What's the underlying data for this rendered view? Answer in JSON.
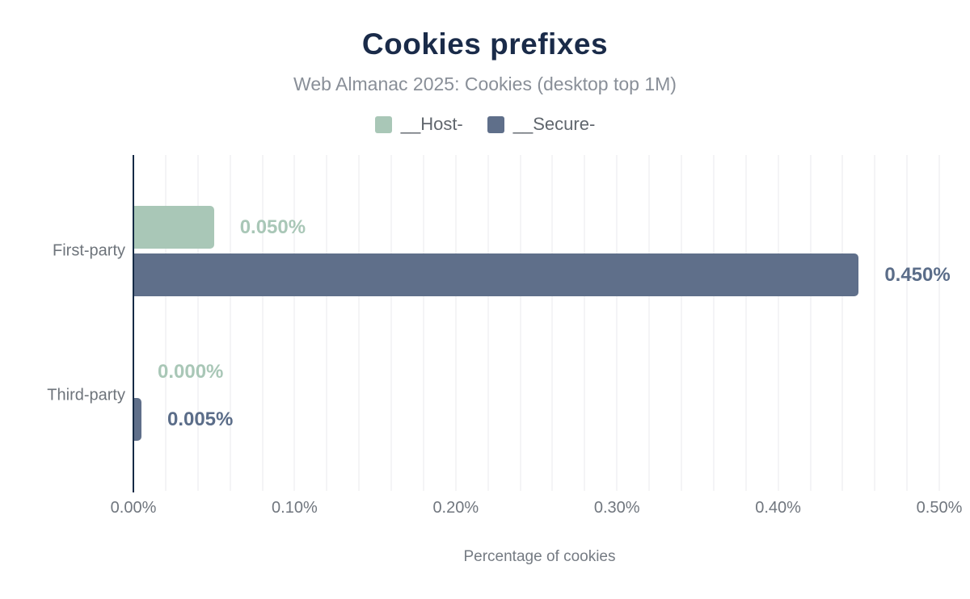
{
  "chart_data": {
    "type": "bar",
    "orientation": "horizontal",
    "title": "Cookies prefixes",
    "subtitle": "Web Almanac 2025: Cookies (desktop top 1M)",
    "xlabel": "Percentage of cookies",
    "categories": [
      "First-party",
      "Third-party"
    ],
    "series": [
      {
        "name": "__Host-",
        "color": "#a9c7b7",
        "label_color": "#a9c7b7",
        "values": [
          0.05,
          0.0
        ],
        "value_labels": [
          "0.050%",
          "0.000%"
        ]
      },
      {
        "name": "__Secure-",
        "color": "#5f6f8a",
        "label_color": "#5b6d89",
        "values": [
          0.45,
          0.005
        ],
        "value_labels": [
          "0.450%",
          "0.005%"
        ]
      }
    ],
    "x_ticks": [
      {
        "value": 0.0,
        "label": "0.00%"
      },
      {
        "value": 0.1,
        "label": "0.10%"
      },
      {
        "value": 0.2,
        "label": "0.20%"
      },
      {
        "value": 0.3,
        "label": "0.30%"
      },
      {
        "value": 0.4,
        "label": "0.40%"
      },
      {
        "value": 0.5,
        "label": "0.50%"
      }
    ],
    "xlim": [
      0,
      0.504
    ],
    "gridline_step": 0.02,
    "grid": true,
    "legend_position": "top",
    "axis_line_color": "#152a45",
    "gridline_color": "#f4f4f6"
  }
}
